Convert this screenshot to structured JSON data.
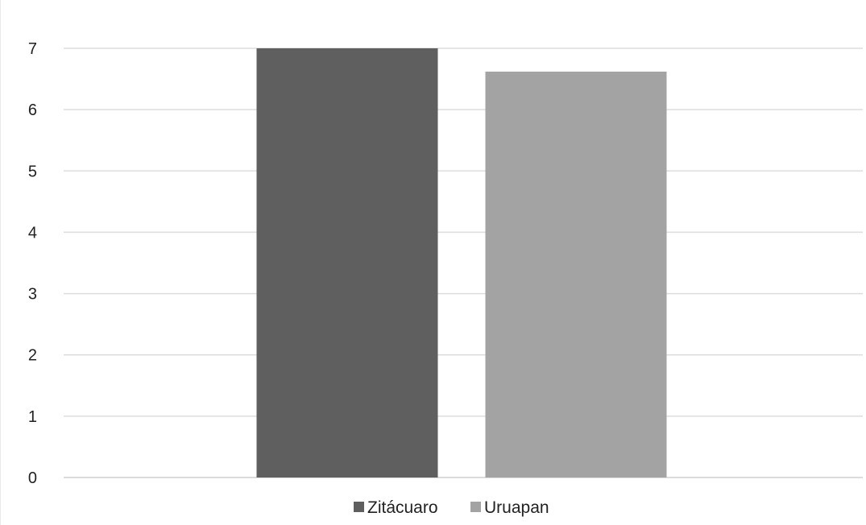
{
  "chart_data": {
    "type": "bar",
    "categories": [
      ""
    ],
    "series": [
      {
        "name": "Zitácuaro",
        "values": [
          7.0
        ]
      },
      {
        "name": "Uruapan",
        "values": [
          6.62
        ]
      }
    ],
    "series_colors": [
      "#5f5f5f",
      "#a3a3a3"
    ],
    "ylim": [
      0,
      7
    ],
    "yticks": [
      "0",
      "1",
      "2",
      "3",
      "4",
      "5",
      "6",
      "7"
    ],
    "grid": true,
    "legend_position": "bottom"
  }
}
